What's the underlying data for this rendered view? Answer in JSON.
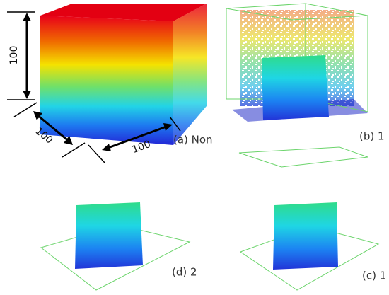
{
  "panels": [
    {
      "label": "(a) Non",
      "dimensions": [
        "100",
        "100",
        "100"
      ]
    },
    {
      "label": "(b) 1"
    },
    {
      "label": "(d) 2"
    },
    {
      "label": "(c) 1"
    }
  ]
}
